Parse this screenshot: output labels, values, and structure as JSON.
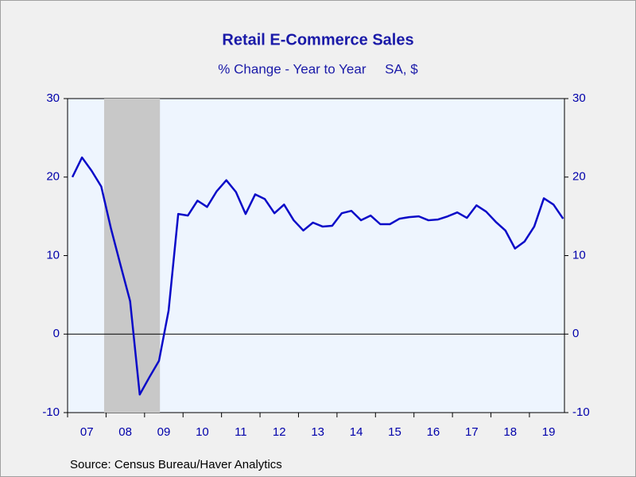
{
  "chart_data": {
    "type": "line",
    "title": "Retail E-Commerce Sales",
    "subtitle": "% Change - Year to Year     SA, $",
    "source": "Source:  Census Bureau/Haver Analytics",
    "x": [
      2007.125,
      2007.375,
      2007.625,
      2007.875,
      2008.125,
      2008.375,
      2008.625,
      2008.875,
      2009.125,
      2009.375,
      2009.625,
      2009.875,
      2010.125,
      2010.375,
      2010.625,
      2010.875,
      2011.125,
      2011.375,
      2011.625,
      2011.875,
      2012.125,
      2012.375,
      2012.625,
      2012.875,
      2013.125,
      2013.375,
      2013.625,
      2013.875,
      2014.125,
      2014.375,
      2014.625,
      2014.875,
      2015.125,
      2015.375,
      2015.625,
      2015.875,
      2016.125,
      2016.375,
      2016.625,
      2016.875,
      2017.125,
      2017.375,
      2017.625,
      2017.875,
      2018.125,
      2018.375,
      2018.625,
      2018.875,
      2019.125,
      2019.375,
      2019.625,
      2019.875
    ],
    "series": [
      {
        "color": "#0a0ac8",
        "values": [
          20.0,
          22.5,
          20.8,
          18.8,
          13.5,
          8.8,
          4.2,
          -7.7,
          -5.5,
          -3.4,
          3.0,
          15.3,
          15.1,
          17.0,
          16.2,
          18.2,
          19.6,
          18.1,
          15.3,
          17.8,
          17.2,
          15.4,
          16.5,
          14.5,
          13.2,
          14.2,
          13.7,
          13.8,
          15.4,
          15.7,
          14.5,
          15.1,
          14.0,
          14.0,
          14.7,
          14.9,
          15.0,
          14.5,
          14.6,
          15.0,
          15.5,
          14.8,
          16.4,
          15.6,
          14.3,
          13.2,
          10.9,
          11.8,
          13.7,
          17.3,
          16.5,
          14.7
        ]
      }
    ],
    "xlim": [
      2007,
      2019.91
    ],
    "xticks": [
      2007,
      2008,
      2009,
      2010,
      2011,
      2012,
      2013,
      2014,
      2015,
      2016,
      2017,
      2018,
      2019
    ],
    "xtick_labels": [
      {
        "value": 2007.5,
        "label": "07"
      },
      {
        "value": 2008.5,
        "label": "08"
      },
      {
        "value": 2009.5,
        "label": "09"
      },
      {
        "value": 2010.5,
        "label": "10"
      },
      {
        "value": 2011.5,
        "label": "11"
      },
      {
        "value": 2012.5,
        "label": "12"
      },
      {
        "value": 2013.5,
        "label": "13"
      },
      {
        "value": 2014.5,
        "label": "14"
      },
      {
        "value": 2015.5,
        "label": "15"
      },
      {
        "value": 2016.5,
        "label": "16"
      },
      {
        "value": 2017.5,
        "label": "17"
      },
      {
        "value": 2018.5,
        "label": "18"
      },
      {
        "value": 2019.5,
        "label": "19"
      }
    ],
    "ylim": [
      -10,
      30
    ],
    "yticks": [
      -10,
      0,
      10,
      20,
      30
    ],
    "y2lim": [
      -10,
      30
    ],
    "y2ticks": [
      -10,
      0,
      10,
      20,
      30
    ],
    "recessions": [
      {
        "start": 2007.95,
        "end": 2009.4
      }
    ],
    "zero_line": 0
  }
}
